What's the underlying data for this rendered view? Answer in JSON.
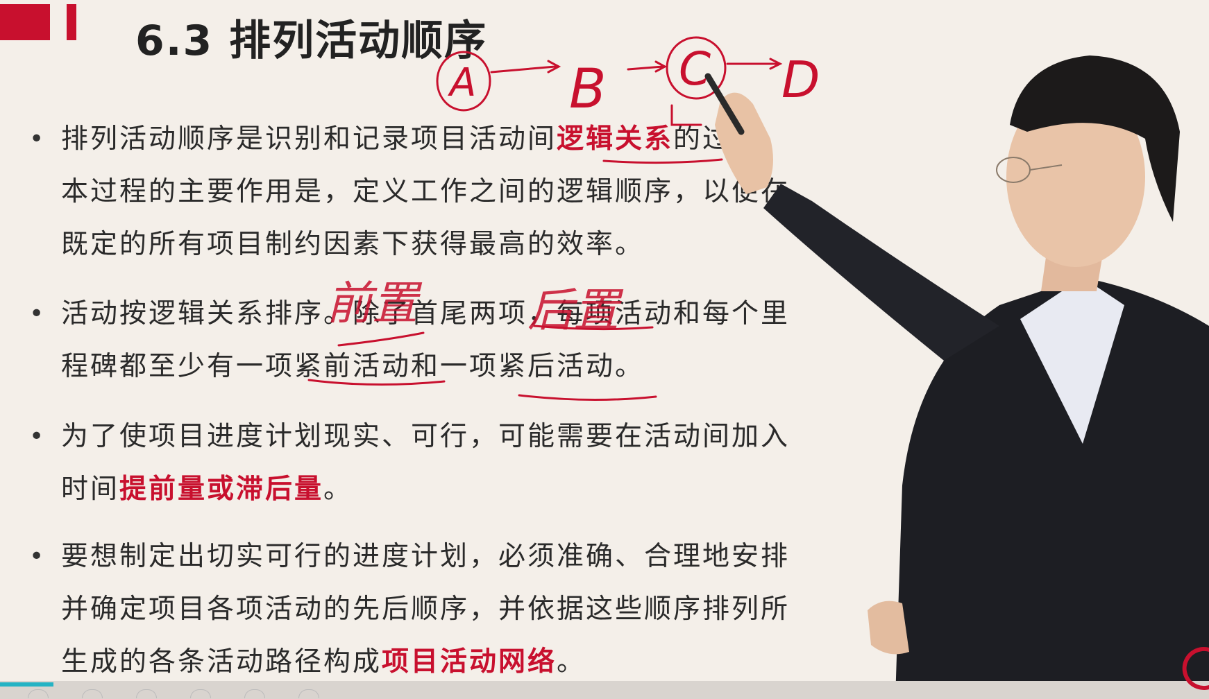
{
  "slide": {
    "title": "6.3 排列活动顺序",
    "bullets": [
      {
        "lines": [
          {
            "segments": [
              {
                "text": "排列活动顺序是识别和记录项目活动间"
              },
              {
                "text": "逻辑关系",
                "highlight": true
              },
              {
                "text": "的过程。"
              }
            ]
          },
          {
            "segments": [
              {
                "text": "本过程的主要作用是，定义工作之间的逻辑顺序，以便在"
              }
            ]
          },
          {
            "segments": [
              {
                "text": "既定的所有项目制约因素下获得最高的效率。"
              }
            ]
          }
        ]
      },
      {
        "lines": [
          {
            "segments": [
              {
                "text": "活动按逻辑关系排序。除了首尾两项，每项活动和每个里"
              }
            ]
          },
          {
            "segments": [
              {
                "text": "程碑都至少有一项紧前活动和一项紧后活动。"
              }
            ]
          }
        ]
      },
      {
        "lines": [
          {
            "segments": [
              {
                "text": "为了使项目进度计划现实、可行，可能需要在活动间加入"
              }
            ]
          },
          {
            "segments": [
              {
                "text": "时间"
              },
              {
                "text": "提前量或滞后量",
                "highlight": true
              },
              {
                "text": "。"
              }
            ]
          }
        ]
      },
      {
        "lines": [
          {
            "segments": [
              {
                "text": "要想制定出切实可行的进度计划，必须准确、合理地安排"
              }
            ]
          },
          {
            "segments": [
              {
                "text": "并确定项目各项活动的先后顺序，并依据这些顺序排列所"
              }
            ]
          },
          {
            "segments": [
              {
                "text": "生成的各条活动路径构成"
              },
              {
                "text": "项目活动网络",
                "highlight": true
              },
              {
                "text": "。"
              }
            ]
          }
        ]
      }
    ]
  },
  "annotations": {
    "nodes": [
      "A",
      "B",
      "C",
      "D"
    ],
    "handwritten_predecessor": "前置",
    "handwritten_successor": "后置",
    "ink_color": "#c8102e"
  },
  "player": {
    "progress": 0.044,
    "accent_color": "#24b3c4"
  },
  "colors": {
    "background": "#f4efe9",
    "highlight": "#c8102e",
    "text": "#2a2a2a"
  }
}
